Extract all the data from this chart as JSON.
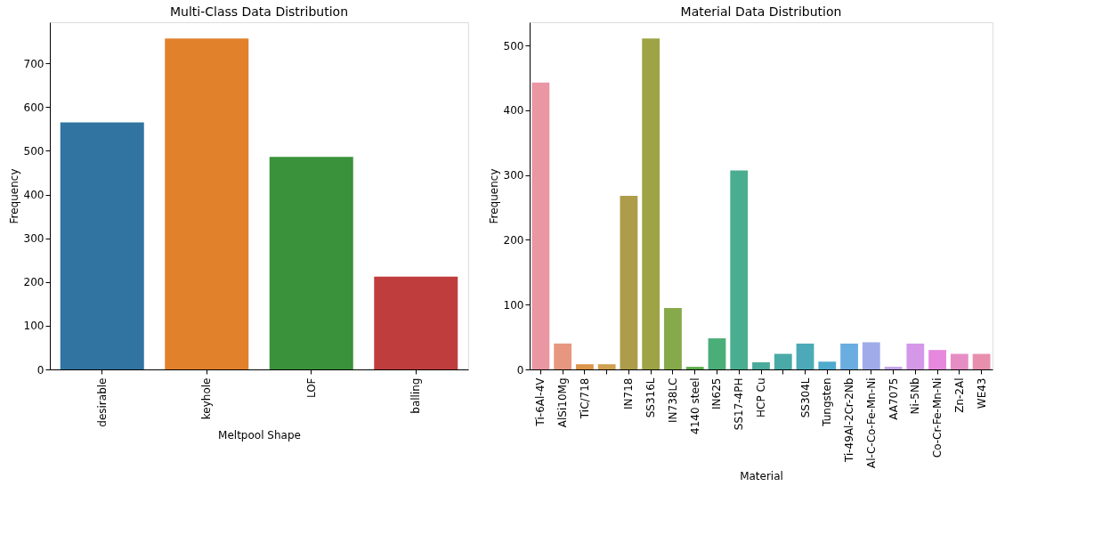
{
  "chart_data": [
    {
      "type": "bar",
      "title": "Multi-Class Data Distribution",
      "xlabel": "Meltpool Shape",
      "ylabel": "Frequency",
      "categories": [
        "desirable",
        "keyhole",
        "LOF",
        "balling"
      ],
      "values": [
        565,
        757,
        486,
        212
      ],
      "colors": [
        "#3274a1",
        "#e1812c",
        "#3a923a",
        "#c03d3e"
      ],
      "ylim": [
        0,
        794
      ],
      "yticks": [
        0,
        100,
        200,
        300,
        400,
        500,
        600,
        700
      ],
      "grid": false,
      "legend": false
    },
    {
      "type": "bar",
      "title": "Material Data Distribution",
      "xlabel": "Material",
      "ylabel": "Frequency",
      "categories": [
        "Ti-6Al-4V",
        "AlSi10Mg",
        "TiC/718",
        null,
        "IN718",
        "SS316L",
        "IN738LC",
        "4140 steel",
        "IN625",
        "SS17-4PH",
        "HCP Cu",
        null,
        "SS304L",
        "Tungsten",
        "Ti-49Al-2Cr-2Nb",
        "Al-C-Co-Fe-Mn-Ni",
        "AA7075",
        "Ni-5Nb",
        "Co-Cr-Fe-Mn-Ni",
        "Zn-2Al",
        "WE43"
      ],
      "values": [
        443,
        40,
        8,
        8,
        268,
        511,
        95,
        4,
        48,
        307,
        11,
        24,
        40,
        12,
        40,
        42,
        4,
        40,
        30,
        24,
        24
      ],
      "colors": [
        "#ea96a3",
        "#e7977f",
        "#dc954a",
        "#d0a050",
        "#ad9c4a",
        "#9ea345",
        "#86a94a",
        "#5dae4b",
        "#4aae78",
        "#4aad8f",
        "#4aab9c",
        "#49aaa7",
        "#4caab8",
        "#4fabcd",
        "#6aaee1",
        "#a0ace9",
        "#c5a6ee",
        "#d598e8",
        "#e688de",
        "#e68dc4",
        "#e88fae"
      ],
      "ylim": [
        0,
        536
      ],
      "yticks": [
        0,
        100,
        200,
        300,
        400,
        500
      ],
      "grid": false,
      "legend": false
    }
  ]
}
